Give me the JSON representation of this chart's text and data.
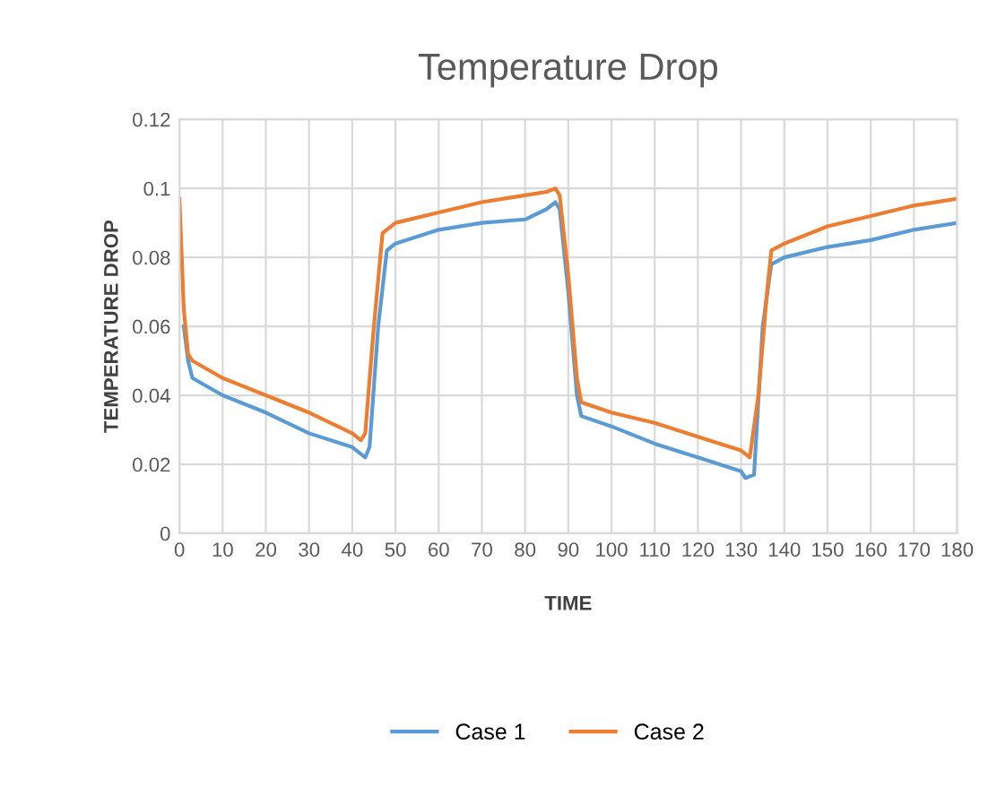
{
  "chart_data": {
    "type": "line",
    "title": "Temperature Drop",
    "xlabel": "TIME",
    "ylabel": "TEMPERATURE DROP",
    "xlim": [
      0,
      180
    ],
    "xticks": [
      0,
      10,
      20,
      30,
      40,
      50,
      60,
      70,
      80,
      90,
      100,
      110,
      120,
      130,
      140,
      150,
      160,
      170,
      180
    ],
    "ylim": [
      0,
      0.12
    ],
    "yticks": [
      0,
      0.02,
      0.04,
      0.06,
      0.08,
      0.1,
      0.12
    ],
    "grid": true,
    "legend": "bottom",
    "line_style": "solid",
    "series": [
      {
        "name": "Case 1",
        "color": "#5b9bd5",
        "x": [
          1,
          2,
          3,
          10,
          20,
          30,
          40,
          43,
          44,
          46,
          48,
          50,
          60,
          70,
          80,
          85,
          87,
          88,
          90,
          92,
          93,
          100,
          110,
          120,
          130,
          131,
          133,
          135,
          137,
          140,
          150,
          160,
          170,
          180
        ],
        "values": [
          0.06,
          0.05,
          0.045,
          0.04,
          0.035,
          0.029,
          0.025,
          0.022,
          0.025,
          0.06,
          0.082,
          0.084,
          0.088,
          0.09,
          0.091,
          0.094,
          0.096,
          0.094,
          0.07,
          0.04,
          0.034,
          0.031,
          0.026,
          0.022,
          0.018,
          0.016,
          0.017,
          0.06,
          0.078,
          0.08,
          0.083,
          0.085,
          0.088,
          0.09
        ]
      },
      {
        "name": "Case 2",
        "color": "#ed7d31",
        "x": [
          0,
          1,
          2,
          3,
          10,
          20,
          30,
          35,
          40,
          42,
          43,
          45,
          47,
          50,
          60,
          70,
          80,
          85,
          87,
          88,
          90,
          92,
          93,
          100,
          110,
          120,
          130,
          132,
          134,
          136,
          137,
          140,
          150,
          160,
          170,
          180
        ],
        "values": [
          0.097,
          0.065,
          0.052,
          0.05,
          0.045,
          0.04,
          0.035,
          0.032,
          0.029,
          0.027,
          0.029,
          0.06,
          0.087,
          0.09,
          0.093,
          0.096,
          0.098,
          0.099,
          0.1,
          0.098,
          0.075,
          0.045,
          0.038,
          0.035,
          0.032,
          0.028,
          0.024,
          0.022,
          0.04,
          0.07,
          0.082,
          0.084,
          0.089,
          0.092,
          0.095,
          0.097
        ]
      }
    ]
  }
}
